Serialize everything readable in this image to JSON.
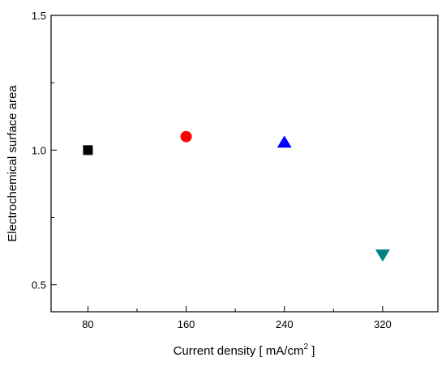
{
  "chart_data": {
    "type": "scatter",
    "title": "",
    "xlabel": "Current density [ mA/cm",
    "xlabel_superscript": "2",
    "xlabel_suffix": " ]",
    "ylabel": "Electrochemical surface area",
    "xlim": [
      50,
      365
    ],
    "ylim": [
      0.4,
      1.5
    ],
    "x_ticks": [
      {
        "value": 80,
        "label": "80"
      },
      {
        "value": 160,
        "label": "160"
      },
      {
        "value": 240,
        "label": "240"
      },
      {
        "value": 320,
        "label": "320"
      }
    ],
    "x_minor_ticks": [
      120,
      200,
      280
    ],
    "y_ticks": [
      {
        "value": 0.5,
        "label": "0.5"
      },
      {
        "value": 1.0,
        "label": "1.0"
      },
      {
        "value": 1.5,
        "label": "1.5"
      }
    ],
    "y_minor_ticks": [
      0.75,
      1.25
    ],
    "grid": false,
    "legend": "none",
    "points": [
      {
        "x": 80,
        "y": 1.0,
        "marker": "square",
        "color": "#000000"
      },
      {
        "x": 160,
        "y": 1.05,
        "marker": "circle",
        "color": "#ff0000"
      },
      {
        "x": 240,
        "y": 1.03,
        "marker": "triangle-up",
        "color": "#0000ff"
      },
      {
        "x": 320,
        "y": 0.61,
        "marker": "triangle-down",
        "color": "#008080"
      }
    ]
  }
}
